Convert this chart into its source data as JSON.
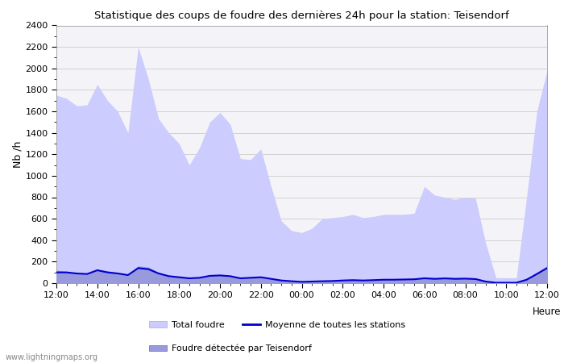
{
  "title": "Statistique des coups de foudre des dernières 24h pour la station: Teisendorf",
  "ylabel": "Nb /h",
  "watermark": "www.lightningmaps.org",
  "ylim": [
    0,
    2400
  ],
  "yticks": [
    0,
    200,
    400,
    600,
    800,
    1000,
    1200,
    1400,
    1600,
    1800,
    2000,
    2200,
    2400
  ],
  "xtick_labels": [
    "12:00",
    "14:00",
    "16:00",
    "18:00",
    "20:00",
    "22:00",
    "00:00",
    "02:00",
    "04:00",
    "06:00",
    "08:00",
    "10:00",
    "12:00"
  ],
  "color_total": "#ccccff",
  "color_station": "#9999dd",
  "color_moyenne": "#0000cc",
  "legend_total": "Total foudre",
  "legend_moyenne": "Moyenne de toutes les stations",
  "legend_station": "Foudre détectée par Teisendorf",
  "bg_color": "#f4f4f8",
  "x": [
    0,
    0.5,
    1,
    1.5,
    2,
    2.5,
    3,
    3.5,
    4,
    4.5,
    5,
    5.5,
    6,
    6.5,
    7,
    7.5,
    8,
    8.5,
    9,
    9.5,
    10,
    10.5,
    11,
    11.5,
    12,
    12.5,
    13,
    13.5,
    14,
    14.5,
    15,
    15.5,
    16,
    16.5,
    17,
    17.5,
    18,
    18.5,
    19,
    19.5,
    20,
    20.5,
    21,
    21.5,
    22,
    22.5,
    23,
    23.5,
    24
  ],
  "total_foudre": [
    1750,
    1720,
    1650,
    1660,
    1850,
    1700,
    1600,
    1400,
    2200,
    1900,
    1530,
    1400,
    1300,
    1100,
    1260,
    1500,
    1590,
    1480,
    1160,
    1150,
    1250,
    900,
    580,
    490,
    470,
    510,
    600,
    610,
    620,
    640,
    610,
    620,
    640,
    640,
    640,
    650,
    900,
    820,
    800,
    780,
    800,
    790,
    370,
    50,
    50,
    50,
    800,
    1600,
    1980
  ],
  "station_foudre": [
    120,
    110,
    95,
    88,
    130,
    115,
    100,
    80,
    160,
    150,
    100,
    70,
    60,
    50,
    55,
    75,
    80,
    70,
    50,
    55,
    60,
    45,
    30,
    20,
    15,
    18,
    22,
    25,
    30,
    35,
    30,
    35,
    40,
    40,
    42,
    45,
    55,
    50,
    55,
    50,
    52,
    48,
    20,
    5,
    5,
    5,
    40,
    100,
    160
  ],
  "moyenne": [
    100,
    100,
    90,
    85,
    120,
    100,
    90,
    75,
    140,
    130,
    90,
    65,
    55,
    45,
    50,
    68,
    72,
    65,
    45,
    50,
    55,
    40,
    25,
    18,
    12,
    15,
    18,
    20,
    25,
    28,
    25,
    28,
    32,
    32,
    34,
    36,
    45,
    40,
    44,
    40,
    42,
    38,
    15,
    4,
    4,
    4,
    32,
    85,
    140
  ]
}
